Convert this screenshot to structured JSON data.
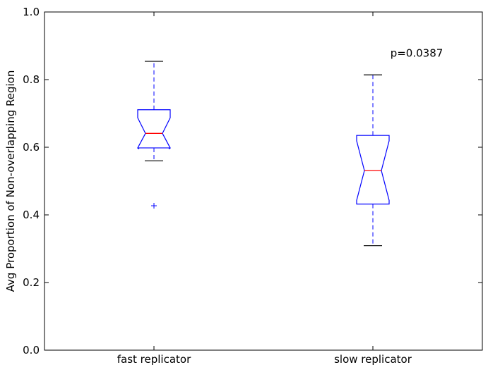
{
  "chart_data": {
    "type": "box",
    "title": "",
    "xlabel": "",
    "ylabel": "Avg Proportion of Non-overlapping Region",
    "ylim": [
      0.0,
      1.0
    ],
    "yticks": [
      0.0,
      0.2,
      0.4,
      0.6,
      0.8,
      1.0
    ],
    "ytick_labels": [
      "0.0",
      "0.2",
      "0.4",
      "0.6",
      "0.8",
      "1.0"
    ],
    "notched": true,
    "grid": false,
    "categories": [
      "fast replicator",
      "slow replicator"
    ],
    "boxes": [
      {
        "name": "fast replicator",
        "whisker_low": 0.56,
        "q1": 0.598,
        "median": 0.641,
        "q3": 0.711,
        "whisker_high": 0.854,
        "notch_low": 0.595,
        "notch_high": 0.687,
        "outliers": [
          0.427
        ]
      },
      {
        "name": "slow replicator",
        "whisker_low": 0.309,
        "q1": 0.432,
        "median": 0.531,
        "q3": 0.635,
        "whisker_high": 0.814,
        "notch_low": 0.443,
        "notch_high": 0.619,
        "outliers": []
      }
    ],
    "annotations": [
      {
        "text": "p=0.0387",
        "x": 2.2,
        "y": 0.878
      }
    ],
    "colors": {
      "box": "#0000ff",
      "median": "#ff0000",
      "whisker_cap": "#000000",
      "outlier": "#0000ff",
      "axes": "#000000"
    }
  }
}
